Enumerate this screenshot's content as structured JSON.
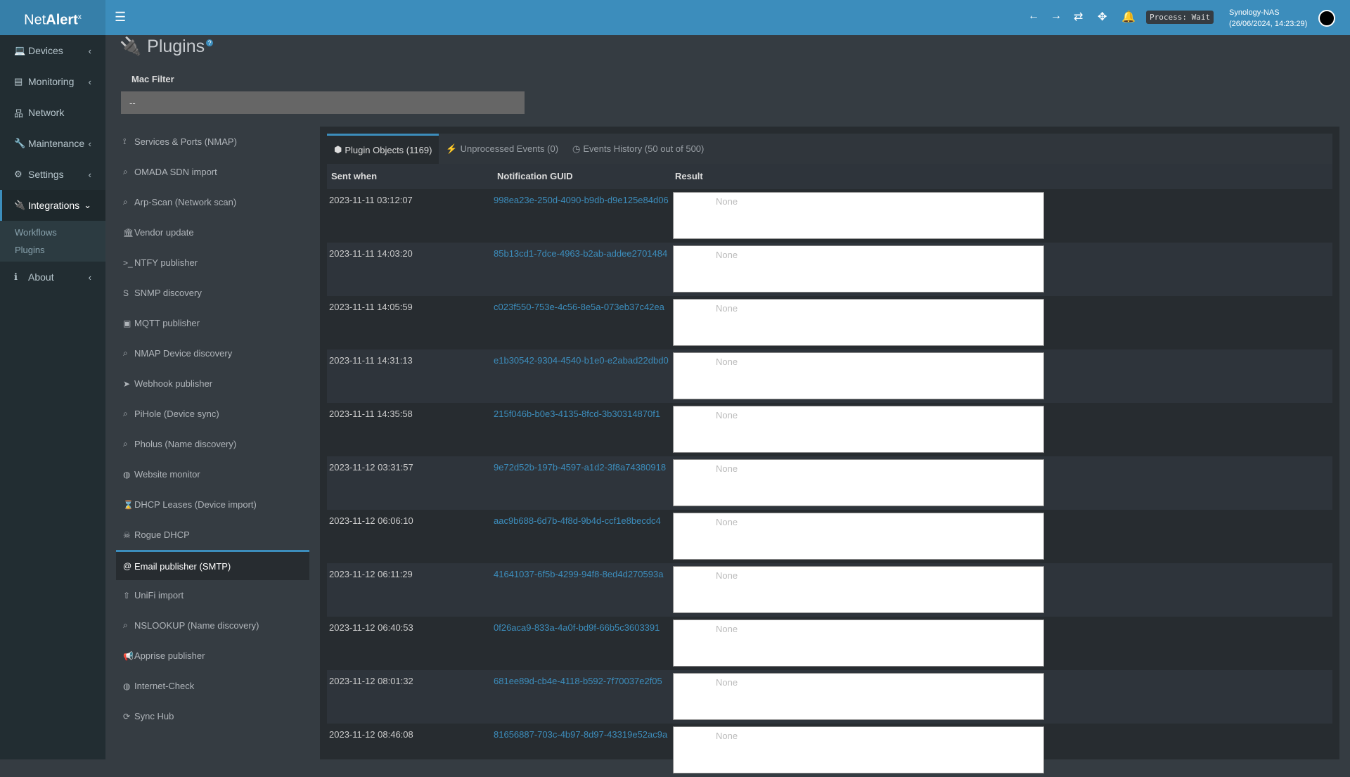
{
  "header": {
    "logo_a": "Net",
    "logo_b": "Alert",
    "logo_sup": "x",
    "process": "Process: Wait",
    "host": "Synology-NAS",
    "datetime": "(26/06/2024, 14:23:29)"
  },
  "sidebar": {
    "items": [
      {
        "label": "Devices",
        "icon": "laptop-icon",
        "chev": "‹"
      },
      {
        "label": "Monitoring",
        "icon": "chart-icon",
        "chev": "‹"
      },
      {
        "label": "Network",
        "icon": "network-icon",
        "chev": ""
      },
      {
        "label": "Maintenance",
        "icon": "wrench-icon",
        "chev": "‹"
      },
      {
        "label": "Settings",
        "icon": "gear-icon",
        "chev": "‹"
      },
      {
        "label": "Integrations",
        "icon": "plug-icon",
        "chev": "⌄"
      }
    ],
    "sub": [
      "Workflows",
      "Plugins"
    ],
    "about": "About"
  },
  "page": {
    "title": "Plugins",
    "mac_label": "Mac Filter",
    "mac_value": "--"
  },
  "plugins": [
    {
      "icon": "⟟",
      "label": "Services & Ports (NMAP)"
    },
    {
      "icon": "⌕",
      "label": "OMADA SDN import"
    },
    {
      "icon": "⌕",
      "label": "Arp-Scan (Network scan)"
    },
    {
      "icon": "🏛",
      "label": "Vendor update"
    },
    {
      "icon": ">_",
      "label": "NTFY publisher"
    },
    {
      "icon": "S",
      "label": "SNMP discovery"
    },
    {
      "icon": "▣",
      "label": "MQTT publisher"
    },
    {
      "icon": "⌕",
      "label": "NMAP Device discovery"
    },
    {
      "icon": "➤",
      "label": "Webhook publisher"
    },
    {
      "icon": "⌕",
      "label": "PiHole (Device sync)"
    },
    {
      "icon": "⌕",
      "label": "Pholus (Name discovery)"
    },
    {
      "icon": "◍",
      "label": "Website monitor"
    },
    {
      "icon": "⌛",
      "label": "DHCP Leases (Device import)"
    },
    {
      "icon": "☠",
      "label": "Rogue DHCP"
    },
    {
      "icon": "@",
      "label": "Email publisher (SMTP)"
    },
    {
      "icon": "⇧",
      "label": "UniFi import"
    },
    {
      "icon": "⌕",
      "label": "NSLOOKUP (Name discovery)"
    },
    {
      "icon": "📢",
      "label": "Apprise publisher"
    },
    {
      "icon": "◍",
      "label": "Internet-Check"
    },
    {
      "icon": "⟳",
      "label": "Sync Hub"
    }
  ],
  "active_plugin": "Email publisher (SMTP)",
  "tabs": [
    {
      "icon": "⬢",
      "label": "Plugin Objects (1169)"
    },
    {
      "icon": "⚡",
      "label": "Unprocessed Events (0)"
    },
    {
      "icon": "◷",
      "label": "Events History (50 out of 500)"
    }
  ],
  "table": {
    "columns": [
      "Sent when",
      "Notification GUID",
      "Result"
    ],
    "rows": [
      [
        "2023-11-11 03:12:07",
        "998ea23e-250d-4090-b9db-d9e125e84d06",
        "None"
      ],
      [
        "2023-11-11 14:03:20",
        "85b13cd1-7dce-4963-b2ab-addee2701484",
        "None"
      ],
      [
        "2023-11-11 14:05:59",
        "c023f550-753e-4c56-8e5a-073eb37c42ea",
        "None"
      ],
      [
        "2023-11-11 14:31:13",
        "e1b30542-9304-4540-b1e0-e2abad22dbd0",
        "None"
      ],
      [
        "2023-11-11 14:35:58",
        "215f046b-b0e3-4135-8fcd-3b30314870f1",
        "None"
      ],
      [
        "2023-11-12 03:31:57",
        "9e72d52b-197b-4597-a1d2-3f8a74380918",
        "None"
      ],
      [
        "2023-11-12 06:06:10",
        "aac9b688-6d7b-4f8d-9b4d-ccf1e8becdc4",
        "None"
      ],
      [
        "2023-11-12 06:11:29",
        "41641037-6f5b-4299-94f8-8ed4d270593a",
        "None"
      ],
      [
        "2023-11-12 06:40:53",
        "0f26aca9-833a-4a0f-bd9f-66b5c3603391",
        "None"
      ],
      [
        "2023-11-12 08:01:32",
        "681ee89d-cb4e-4118-b592-7f70037e2f05",
        "None"
      ],
      [
        "2023-11-12 08:46:08",
        "81656887-703c-4b97-8d97-43319e52ac9a",
        "None"
      ]
    ]
  },
  "colors": {
    "header": "#3c8dbc",
    "sidebar": "#222d32",
    "link": "#3c8dbc"
  }
}
